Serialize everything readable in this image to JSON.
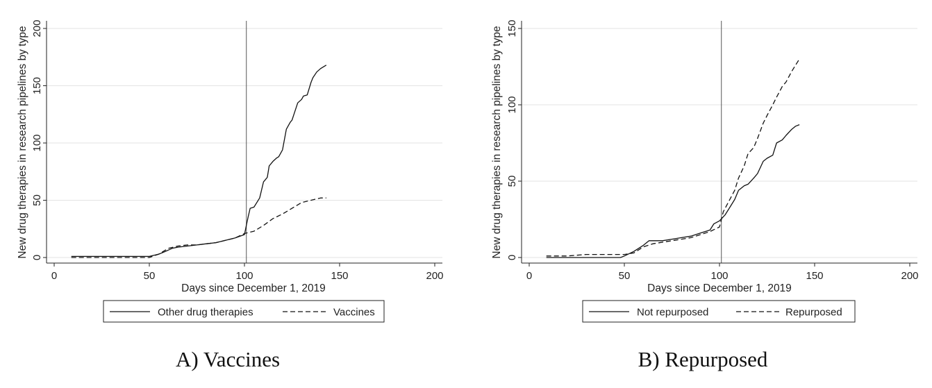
{
  "chart_data": [
    {
      "type": "line",
      "panel": "A) Vaccines",
      "title": "",
      "xlabel": "Days since December 1, 2019",
      "ylabel": "New drug therapies in research pipelines by type",
      "xlim": [
        0,
        200
      ],
      "ylim": [
        0,
        200
      ],
      "xticks": [
        0,
        50,
        100,
        150,
        200
      ],
      "yticks": [
        0,
        50,
        100,
        150,
        200
      ],
      "grid": "horizontal",
      "legend": "bottom",
      "reference_line_x": 101,
      "series": [
        {
          "name": "Other drug therapies",
          "style": "solid",
          "x": [
            9,
            20,
            30,
            40,
            50,
            55,
            58,
            62,
            65,
            70,
            75,
            80,
            85,
            90,
            95,
            100,
            101,
            102,
            103,
            105,
            108,
            110,
            112,
            113,
            115,
            117,
            118,
            120,
            122,
            124,
            125,
            126,
            128,
            130,
            131,
            133,
            135,
            136,
            138,
            140,
            142,
            143
          ],
          "y": [
            1,
            1,
            1,
            1,
            1,
            3,
            5,
            8,
            9,
            10,
            11,
            12,
            13,
            15,
            17,
            20,
            28,
            36,
            43,
            44,
            52,
            66,
            70,
            80,
            84,
            87,
            88,
            94,
            112,
            118,
            120,
            125,
            135,
            138,
            141,
            142,
            153,
            157,
            162,
            165,
            167,
            168
          ]
        },
        {
          "name": "Vaccines",
          "style": "dashed",
          "x": [
            9,
            20,
            30,
            40,
            50,
            55,
            60,
            65,
            70,
            75,
            80,
            85,
            90,
            95,
            100,
            105,
            110,
            115,
            120,
            125,
            130,
            135,
            140,
            143
          ],
          "y": [
            0,
            0,
            0,
            0,
            0,
            3,
            8,
            10,
            11,
            11,
            12,
            13,
            15,
            17,
            21,
            23,
            28,
            34,
            38,
            43,
            48,
            50,
            52,
            52
          ]
        }
      ]
    },
    {
      "type": "line",
      "panel": "B) Repurposed",
      "title": "",
      "xlabel": "Days since December 1, 2019",
      "ylabel": "New drug therapies in research pipelines by type",
      "xlim": [
        0,
        200
      ],
      "ylim": [
        0,
        150
      ],
      "xticks": [
        0,
        50,
        100,
        150,
        200
      ],
      "yticks": [
        0,
        50,
        100,
        150
      ],
      "grid": "horizontal",
      "legend": "bottom",
      "reference_line_x": 101,
      "series": [
        {
          "name": "Not repurposed",
          "style": "solid",
          "x": [
            9,
            20,
            30,
            40,
            48,
            50,
            55,
            60,
            63,
            65,
            70,
            75,
            80,
            85,
            90,
            95,
            97,
            100,
            103,
            105,
            108,
            110,
            113,
            115,
            118,
            120,
            123,
            125,
            128,
            130,
            133,
            135,
            138,
            140,
            142
          ],
          "y": [
            0,
            0,
            0,
            0,
            0,
            1,
            4,
            8,
            11,
            11,
            11,
            12,
            13,
            14,
            16,
            18,
            22,
            24,
            28,
            32,
            38,
            44,
            47,
            48,
            52,
            55,
            63,
            65,
            67,
            75,
            77,
            80,
            84,
            86,
            87
          ]
        },
        {
          "name": "Repurposed",
          "style": "dashed",
          "x": [
            9,
            20,
            30,
            40,
            48,
            50,
            55,
            60,
            65,
            70,
            75,
            80,
            85,
            90,
            95,
            100,
            102,
            105,
            108,
            110,
            113,
            115,
            118,
            120,
            123,
            125,
            128,
            130,
            133,
            135,
            138,
            140,
            142
          ],
          "y": [
            1,
            1,
            2,
            2,
            2,
            2,
            3,
            7,
            9,
            10,
            11,
            12,
            13,
            15,
            17,
            20,
            30,
            37,
            44,
            52,
            60,
            68,
            72,
            78,
            88,
            93,
            100,
            105,
            112,
            115,
            122,
            126,
            130
          ]
        }
      ]
    }
  ]
}
